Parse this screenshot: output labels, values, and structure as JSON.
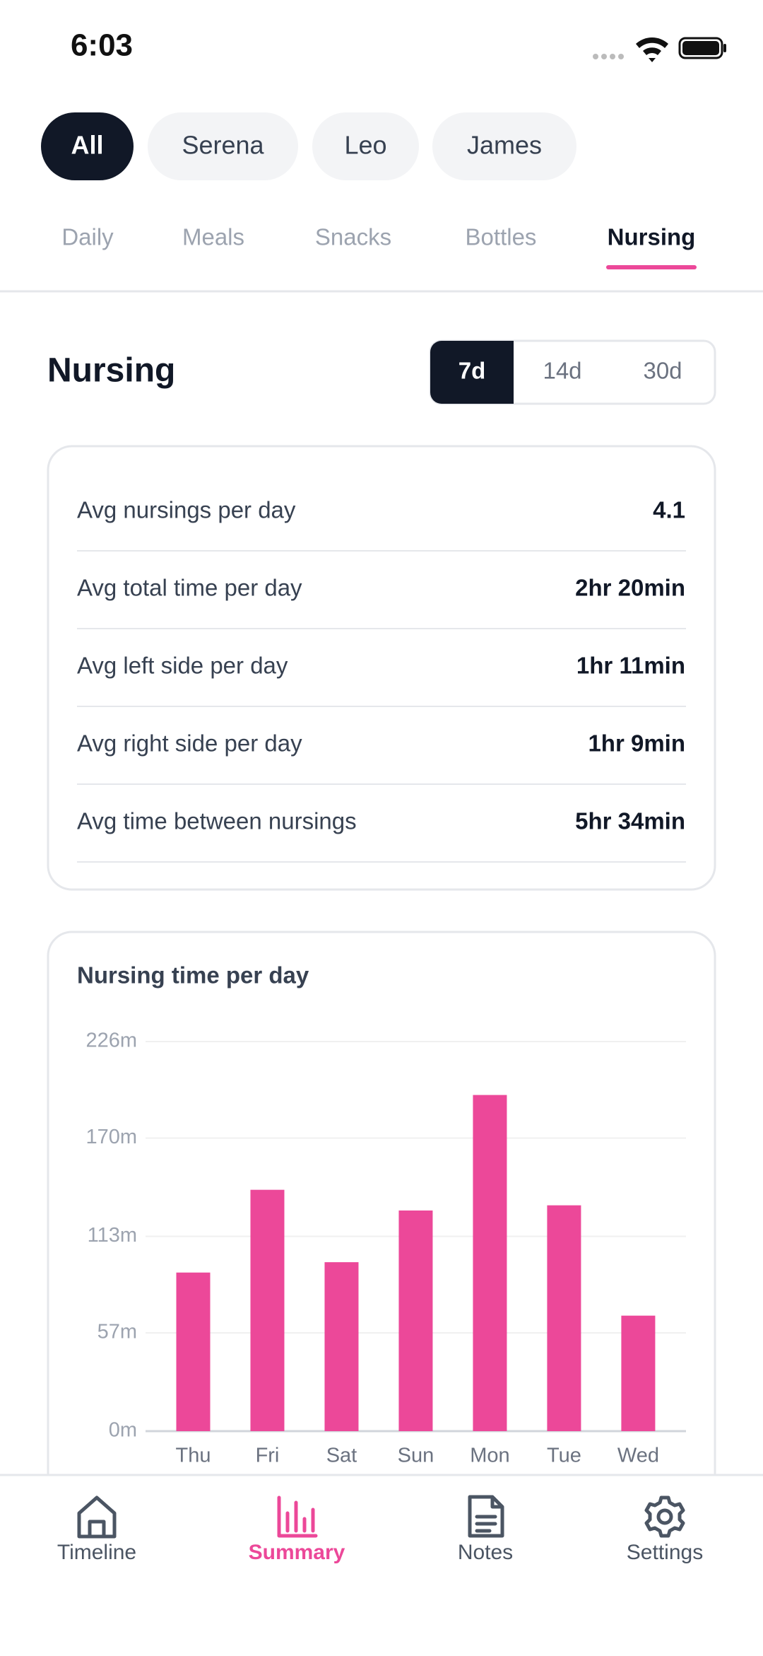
{
  "status_bar": {
    "time": "6:03"
  },
  "filters": [
    "All",
    "Serena",
    "Leo",
    "James"
  ],
  "tabs": [
    "Daily",
    "Meals",
    "Snacks",
    "Bottles",
    "Nursing"
  ],
  "section": {
    "title": "Nursing",
    "ranges": [
      "7d",
      "14d",
      "30d"
    ]
  },
  "stats": [
    [
      "Avg nursings per day",
      "4.1"
    ],
    [
      "Avg total time per day",
      "2hr 20min"
    ],
    [
      "Avg left side per day",
      "1hr 11min"
    ],
    [
      "Avg right side per day",
      "1hr 9min"
    ],
    [
      "Avg time between nursings",
      "5hr 34min"
    ]
  ],
  "chart_data": {
    "type": "bar",
    "title": "Nursing time per day",
    "categories": [
      "Thu",
      "Fri",
      "Sat",
      "Sun",
      "Mon",
      "Tue",
      "Wed"
    ],
    "values": [
      92,
      140,
      98,
      128,
      195,
      131,
      67
    ],
    "color": "#ec4899",
    "ylim": [
      0,
      226
    ],
    "yticks": [
      {
        "value": 0,
        "label": "0m"
      },
      {
        "value": 57,
        "label": "57m"
      },
      {
        "value": 113,
        "label": "113m"
      },
      {
        "value": 170,
        "label": "170m"
      },
      {
        "value": 226,
        "label": "226m"
      }
    ],
    "grid": true
  },
  "nav": [
    "Timeline",
    "Summary",
    "Notes",
    "Settings"
  ]
}
